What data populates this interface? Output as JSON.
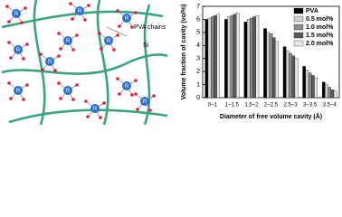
{
  "diagram": {
    "chain_label": "PVA chains",
    "si_label": "Si",
    "node_label": "R"
  },
  "chart_data": {
    "type": "bar",
    "y_label": "Volume fraction of cavity (vol%)",
    "x_label": "Diameter of free volume cavity (Å)",
    "categories": [
      "0~1",
      "1~1.5",
      "1.5~2",
      "2~2.5",
      "2.5~3",
      "3~3.5",
      "3.5~4"
    ],
    "series": [
      {
        "name": "PVA",
        "color": "#000000",
        "values": [
          6.0,
          6.0,
          5.8,
          5.3,
          3.9,
          2.4,
          1.2
        ]
      },
      {
        "name": "0.5 mol%",
        "color": "#d0d0d0",
        "values": [
          6.1,
          6.2,
          6.0,
          5.0,
          3.6,
          2.1,
          1.0
        ]
      },
      {
        "name": "1.0 mol%",
        "color": "#8a8a8a",
        "values": [
          6.2,
          6.3,
          6.1,
          4.9,
          3.4,
          1.9,
          0.8
        ]
      },
      {
        "name": "1.5 mol%",
        "color": "#5a5a5a",
        "values": [
          6.3,
          6.4,
          6.2,
          4.6,
          3.2,
          1.7,
          0.6
        ]
      },
      {
        "name": "2.0 mol%",
        "color": "#e6e6e6",
        "values": [
          6.4,
          6.5,
          6.3,
          4.3,
          3.0,
          1.5,
          0.5
        ]
      }
    ],
    "ylim": [
      0,
      7
    ],
    "yticks": [
      0,
      1,
      2,
      3,
      4,
      5,
      6,
      7
    ],
    "legend": "upper right"
  }
}
